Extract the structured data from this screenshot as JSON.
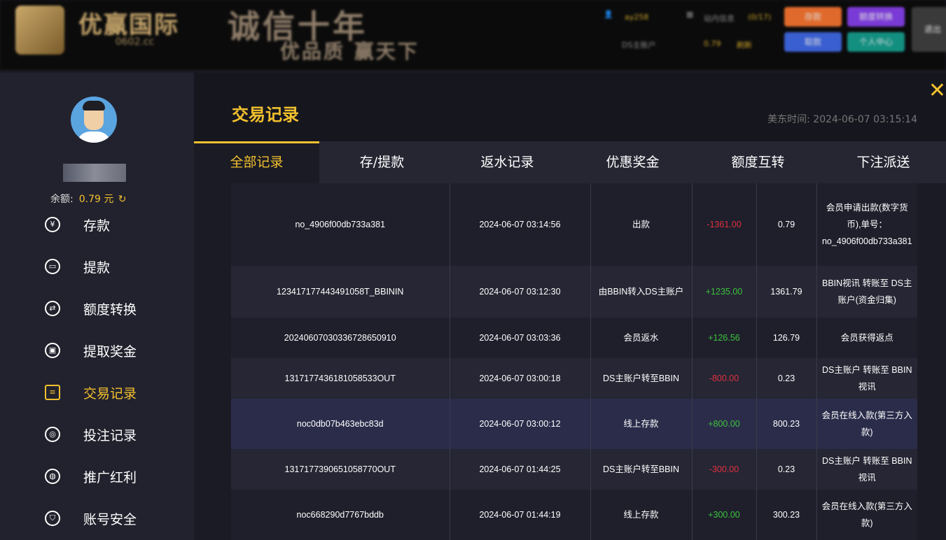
{
  "header": {
    "brand": "优赢国际",
    "domain": "0602.cc",
    "slogan1": "诚信十年",
    "slogan2": "优品质 赢天下",
    "username": "ay258",
    "messages_label": "站内信息",
    "messages_count": "(0/17)",
    "account_label": "DS主账户",
    "account_balance": "0.79",
    "refresh_label": "刷新",
    "buttons": [
      {
        "label": "存款",
        "color": "#e06a2c"
      },
      {
        "label": "额度转换",
        "color": "#7a3ad6"
      },
      {
        "label": "取款",
        "color": "#3a5fd0"
      },
      {
        "label": "个人中心",
        "color": "#138f80"
      },
      {
        "label": "退出",
        "color": "#3a3a3a"
      }
    ]
  },
  "sidebar": {
    "balance_label": "余额:",
    "balance_value": "0.79 元",
    "items": [
      {
        "label": "存款",
        "icon": "yen-circle-icon"
      },
      {
        "label": "提款",
        "icon": "ticket-icon"
      },
      {
        "label": "额度转换",
        "icon": "exchange-icon"
      },
      {
        "label": "提取奖金",
        "icon": "gift-icon"
      },
      {
        "label": "交易记录",
        "icon": "clipboard-icon",
        "active": true
      },
      {
        "label": "投注记录",
        "icon": "bet-icon"
      },
      {
        "label": "推广红利",
        "icon": "coins-icon"
      },
      {
        "label": "账号安全",
        "icon": "shield-icon"
      }
    ]
  },
  "main": {
    "title": "交易记录",
    "time_label": "美东时间:",
    "time_value": "2024-06-07 03:15:14",
    "tabs": [
      "全部记录",
      "存/提款",
      "返水记录",
      "优惠奖金",
      "额度互转",
      "下注派送"
    ]
  },
  "colors": {
    "accent": "#f2c12e",
    "negative": "#e0303f",
    "positive": "#3cc23c"
  },
  "rows": [
    {
      "id": "no_4906f00db733a381",
      "time": "2024-06-07 03:14:56",
      "type": "出款",
      "amount": "-1361.00",
      "balance": "0.79",
      "note": "会员申请出款(数字货币),单号：no_4906f00db733a381"
    },
    {
      "id": "123417177443491058T_BBININ",
      "time": "2024-06-07 03:12:30",
      "type": "由BBIN转入DS主账户",
      "amount": "+1235.00",
      "balance": "1361.79",
      "note": "BBIN视讯 转账至 DS主账户(资金归集)"
    },
    {
      "id": "20240607030336728650910",
      "time": "2024-06-07 03:03:36",
      "type": "会员返水",
      "amount": "+126.56",
      "balance": "126.79",
      "note": "会员获得返点"
    },
    {
      "id": "1317177436181058533OUT",
      "time": "2024-06-07 03:00:18",
      "type": "DS主账户转至BBIN",
      "amount": "-800.00",
      "balance": "0.23",
      "note": "DS主账户 转账至 BBIN视讯"
    },
    {
      "id": "noc0db07b463ebc83d",
      "time": "2024-06-07 03:00:12",
      "type": "线上存款",
      "amount": "+800.00",
      "balance": "800.23",
      "note": "会员在线入款(第三方入款)"
    },
    {
      "id": "1317177390651058770OUT",
      "time": "2024-06-07 01:44:25",
      "type": "DS主账户转至BBIN",
      "amount": "-300.00",
      "balance": "0.23",
      "note": "DS主账户 转账至 BBIN视讯"
    },
    {
      "id": "noc668290d7767bddb",
      "time": "2024-06-07 01:44:19",
      "type": "线上存款",
      "amount": "+300.00",
      "balance": "300.23",
      "note": "会员在线入款(第三方入款)"
    }
  ]
}
